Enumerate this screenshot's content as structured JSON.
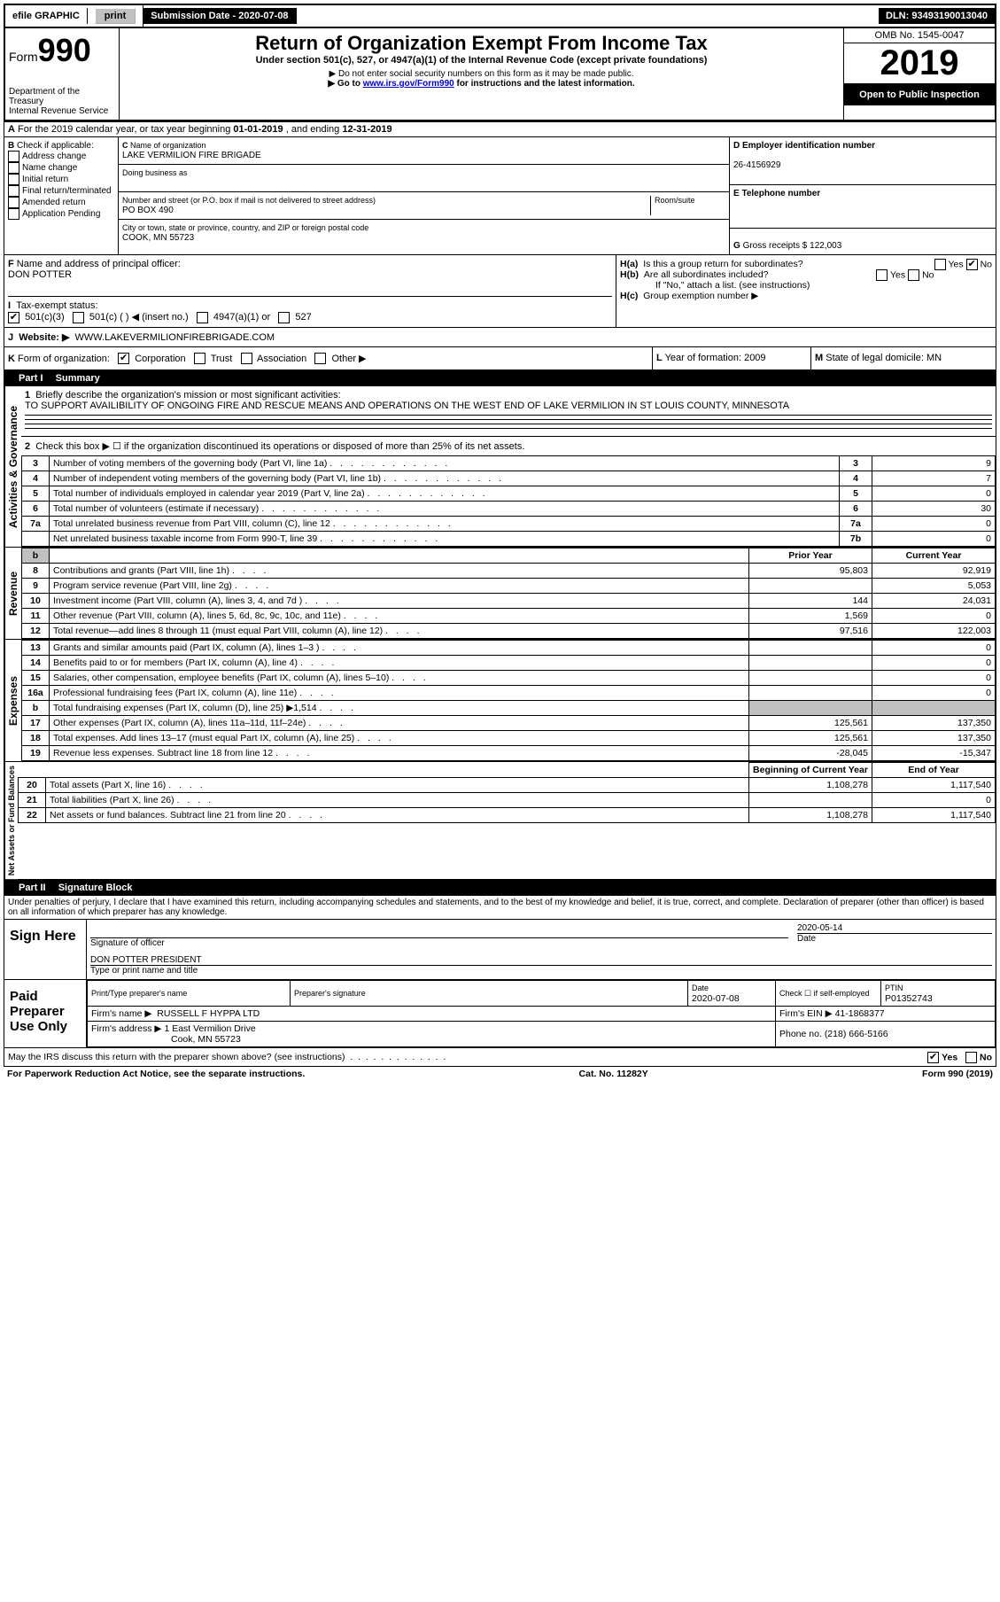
{
  "topbar": {
    "efile": "efile GRAPHIC",
    "print": "print",
    "subdate_label": "Submission Date - ",
    "subdate": "2020-07-08",
    "dln_label": "DLN: ",
    "dln": "93493190013040"
  },
  "header": {
    "form": "Form",
    "num": "990",
    "dept1": "Department of the Treasury",
    "dept2": "Internal Revenue Service",
    "title": "Return of Organization Exempt From Income Tax",
    "sub1": "Under section 501(c), 527, or 4947(a)(1) of the Internal Revenue Code (except private foundations)",
    "sub2": "Do not enter social security numbers on this form as it may be made public.",
    "sub3_pre": "Go to ",
    "sub3_link": "www.irs.gov/Form990",
    "sub3_post": " for instructions and the latest information.",
    "omb": "OMB No. 1545-0047",
    "year": "2019",
    "open": "Open to Public Inspection"
  },
  "rowA": {
    "text": "For the 2019 calendar year, or tax year beginning ",
    "begin": "01-01-2019",
    "mid": " , and ending ",
    "end": "12-31-2019"
  },
  "boxB": {
    "label": "B",
    "check": "Check if applicable:",
    "opts": [
      "Address change",
      "Name change",
      "Initial return",
      "Final return/terminated",
      "Amended return",
      "Application Pending"
    ]
  },
  "boxC": {
    "label": "C",
    "name_label": "Name of organization",
    "name": "LAKE VERMILION FIRE BRIGADE",
    "dba_label": "Doing business as",
    "addr_label": "Number and street (or P.O. box if mail is not delivered to street address)",
    "room_label": "Room/suite",
    "addr": "PO BOX 490",
    "city_label": "City or town, state or province, country, and ZIP or foreign postal code",
    "city": "COOK, MN  55723"
  },
  "boxD": {
    "label": "D Employer identification number",
    "ein": "26-4156929"
  },
  "boxE": {
    "label": "E Telephone number"
  },
  "boxG": {
    "label": "G",
    "text": "Gross receipts $ 122,003"
  },
  "boxF": {
    "label": "F",
    "text": "Name and address of principal officer:",
    "name": "DON POTTER"
  },
  "boxH": {
    "a": "H(a)",
    "a_text": "Is this a group return for subordinates?",
    "b": "H(b)",
    "b_text": "Are all subordinates included?",
    "note": "If \"No,\" attach a list. (see instructions)",
    "c": "H(c)",
    "c_text": "Group exemption number ▶",
    "yes": "Yes",
    "no": "No"
  },
  "boxI": {
    "label": "I",
    "text": "Tax-exempt status:",
    "o1": "501(c)(3)",
    "o2": "501(c) (  ) ◀ (insert no.)",
    "o3": "4947(a)(1) or",
    "o4": "527"
  },
  "boxJ": {
    "label": "J",
    "text": "Website: ▶",
    "url": "WWW.LAKEVERMILIONFIREBRIGADE.COM"
  },
  "boxK": {
    "label": "K",
    "text": "Form of organization:",
    "o1": "Corporation",
    "o2": "Trust",
    "o3": "Association",
    "o4": "Other ▶"
  },
  "boxL": {
    "label": "L",
    "text": "Year of formation: 2009"
  },
  "boxM": {
    "label": "M",
    "text": "State of legal domicile: MN"
  },
  "part1": {
    "label": "Part I",
    "title": "Summary",
    "vert1": "Activities & Governance",
    "vert2": "Revenue",
    "vert3": "Expenses",
    "vert4": "Net Assets or Fund Balances",
    "l1_label": "1",
    "l1": "Briefly describe the organization's mission or most significant activities:",
    "l1_text": "TO SUPPORT AVAILIBILITY OF ONGOING FIRE AND RESCUE MEANS AND OPERATIONS ON THE WEST END OF LAKE VERMILION IN ST LOUIS COUNTY, MINNESOTA",
    "l2_n": "2",
    "l2": "Check this box ▶ ☐ if the organization discontinued its operations or disposed of more than 25% of its net assets.",
    "prior_hdr": "Prior Year",
    "curr_hdr": "Current Year",
    "boy_hdr": "Beginning of Current Year",
    "eoy_hdr": "End of Year",
    "rows_gov": [
      {
        "n": "3",
        "t": "Number of voting members of the governing body (Part VI, line 1a)",
        "c": "3",
        "v": "9"
      },
      {
        "n": "4",
        "t": "Number of independent voting members of the governing body (Part VI, line 1b)",
        "c": "4",
        "v": "7"
      },
      {
        "n": "5",
        "t": "Total number of individuals employed in calendar year 2019 (Part V, line 2a)",
        "c": "5",
        "v": "0"
      },
      {
        "n": "6",
        "t": "Total number of volunteers (estimate if necessary)",
        "c": "6",
        "v": "30"
      },
      {
        "n": "7a",
        "t": "Total unrelated business revenue from Part VIII, column (C), line 12",
        "c": "7a",
        "v": "0"
      },
      {
        "n": "",
        "t": "Net unrelated business taxable income from Form 990-T, line 39",
        "c": "7b",
        "v": "0"
      }
    ],
    "rows_rev": [
      {
        "n": "8",
        "t": "Contributions and grants (Part VIII, line 1h)",
        "p": "95,803",
        "c": "92,919"
      },
      {
        "n": "9",
        "t": "Program service revenue (Part VIII, line 2g)",
        "p": "",
        "c": "5,053"
      },
      {
        "n": "10",
        "t": "Investment income (Part VIII, column (A), lines 3, 4, and 7d )",
        "p": "144",
        "c": "24,031"
      },
      {
        "n": "11",
        "t": "Other revenue (Part VIII, column (A), lines 5, 6d, 8c, 9c, 10c, and 11e)",
        "p": "1,569",
        "c": "0"
      },
      {
        "n": "12",
        "t": "Total revenue—add lines 8 through 11 (must equal Part VIII, column (A), line 12)",
        "p": "97,516",
        "c": "122,003"
      }
    ],
    "rows_exp": [
      {
        "n": "13",
        "t": "Grants and similar amounts paid (Part IX, column (A), lines 1–3 )",
        "p": "",
        "c": "0"
      },
      {
        "n": "14",
        "t": "Benefits paid to or for members (Part IX, column (A), line 4)",
        "p": "",
        "c": "0"
      },
      {
        "n": "15",
        "t": "Salaries, other compensation, employee benefits (Part IX, column (A), lines 5–10)",
        "p": "",
        "c": "0"
      },
      {
        "n": "16a",
        "t": "Professional fundraising fees (Part IX, column (A), line 11e)",
        "p": "",
        "c": "0"
      },
      {
        "n": "b",
        "t": "Total fundraising expenses (Part IX, column (D), line 25) ▶1,514",
        "p": "GREY",
        "c": "GREY"
      },
      {
        "n": "17",
        "t": "Other expenses (Part IX, column (A), lines 11a–11d, 11f–24e)",
        "p": "125,561",
        "c": "137,350"
      },
      {
        "n": "18",
        "t": "Total expenses. Add lines 13–17 (must equal Part IX, column (A), line 25)",
        "p": "125,561",
        "c": "137,350"
      },
      {
        "n": "19",
        "t": "Revenue less expenses. Subtract line 18 from line 12",
        "p": "-28,045",
        "c": "-15,347"
      }
    ],
    "rows_net": [
      {
        "n": "20",
        "t": "Total assets (Part X, line 16)",
        "p": "1,108,278",
        "c": "1,117,540"
      },
      {
        "n": "21",
        "t": "Total liabilities (Part X, line 26)",
        "p": "",
        "c": "0"
      },
      {
        "n": "22",
        "t": "Net assets or fund balances. Subtract line 21 from line 20",
        "p": "1,108,278",
        "c": "1,117,540"
      }
    ]
  },
  "part2": {
    "label": "Part II",
    "title": "Signature Block",
    "decl": "Under penalties of perjury, I declare that I have examined this return, including accompanying schedules and statements, and to the best of my knowledge and belief, it is true, correct, and complete. Declaration of preparer (other than officer) is based on all information of which preparer has any knowledge.",
    "sign_here": "Sign Here",
    "sig_officer": "Signature of officer",
    "sig_date_label": "Date",
    "sig_date": "2020-05-14",
    "sig_name": "DON POTTER  PRESIDENT",
    "sig_name_label": "Type or print name and title",
    "paid": "Paid Preparer Use Only",
    "prep_name_label": "Print/Type preparer's name",
    "prep_sig_label": "Preparer's signature",
    "prep_date_label": "Date",
    "prep_date": "2020-07-08",
    "self_emp": "Check ☐ if self-employed",
    "ptin_label": "PTIN",
    "ptin": "P01352743",
    "firm_name_label": "Firm's name   ▶",
    "firm_name": "RUSSELL F HYPPA LTD",
    "firm_ein_label": "Firm's EIN ▶",
    "firm_ein": "41-1868377",
    "firm_addr_label": "Firm's address ▶",
    "firm_addr1": "1 East Vermilion Drive",
    "firm_addr2": "Cook, MN  55723",
    "phone_label": "Phone no.",
    "phone": "(218) 666-5166",
    "discuss": "May the IRS discuss this return with the preparer shown above? (see instructions)",
    "yes": "Yes",
    "no": "No"
  },
  "footer": {
    "left": "For Paperwork Reduction Act Notice, see the separate instructions.",
    "mid": "Cat. No. 11282Y",
    "right": "Form 990 (2019)"
  }
}
